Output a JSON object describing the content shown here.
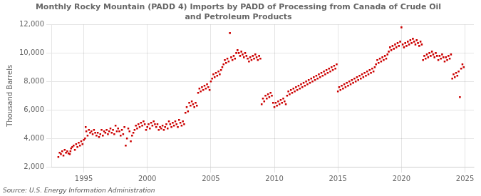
{
  "chart_data": {
    "type": "scatter",
    "title": "Monthly Rocky Mountain (PADD 4) Imports by PADD of Processing from Canada of Crude Oil\nand Petroleum Products",
    "ylabel": "Thousand Barrels",
    "source": "Source: U.S. Energy Information Administration",
    "color": "#cc0000",
    "marker": "square",
    "grid": true,
    "xlim": [
      1992.5,
      2025.7
    ],
    "xticks": [
      1995,
      2000,
      2005,
      2010,
      2015,
      2020,
      2025
    ],
    "ylim": [
      2000,
      12000
    ],
    "yticks": [
      {
        "value": 2000,
        "label": "2,000"
      },
      {
        "value": 4000,
        "label": "4,000"
      },
      {
        "value": 6000,
        "label": "6,000"
      },
      {
        "value": 8000,
        "label": "8,000"
      },
      {
        "value": 10000,
        "label": "10,000"
      },
      {
        "value": 12000,
        "label": "12,000"
      }
    ],
    "x": [
      1993.0,
      1993.1,
      1993.2,
      1993.3,
      1993.4,
      1993.5,
      1993.6,
      1993.7,
      1993.8,
      1993.9,
      1993.95,
      1994.0,
      1994.1,
      1994.2,
      1994.3,
      1994.4,
      1994.5,
      1994.6,
      1994.7,
      1994.8,
      1994.9,
      1995.0,
      1995.1,
      1995.15,
      1995.2,
      1995.3,
      1995.4,
      1995.5,
      1995.6,
      1995.7,
      1995.8,
      1995.9,
      1996.0,
      1996.1,
      1996.2,
      1996.3,
      1996.4,
      1996.5,
      1996.6,
      1996.7,
      1996.8,
      1996.9,
      1997.0,
      1997.1,
      1997.2,
      1997.3,
      1997.4,
      1997.5,
      1997.6,
      1997.7,
      1997.8,
      1997.9,
      1998.0,
      1998.1,
      1998.2,
      1998.3,
      1998.4,
      1998.5,
      1998.6,
      1998.7,
      1998.8,
      1998.9,
      1999.0,
      1999.1,
      1999.2,
      1999.3,
      1999.4,
      1999.5,
      1999.6,
      1999.7,
      1999.8,
      1999.9,
      2000.0,
      2000.1,
      2000.2,
      2000.3,
      2000.4,
      2000.5,
      2000.6,
      2000.7,
      2000.8,
      2000.9,
      2001.0,
      2001.1,
      2001.2,
      2001.3,
      2001.4,
      2001.5,
      2001.6,
      2001.7,
      2001.8,
      2001.9,
      2002.0,
      2002.1,
      2002.2,
      2002.3,
      2002.4,
      2002.5,
      2002.6,
      2002.7,
      2002.8,
      2002.9,
      2003.0,
      2003.1,
      2003.2,
      2003.3,
      2003.4,
      2003.5,
      2003.6,
      2003.7,
      2003.8,
      2003.9,
      2004.0,
      2004.1,
      2004.2,
      2004.3,
      2004.4,
      2004.5,
      2004.6,
      2004.7,
      2004.8,
      2004.9,
      2005.0,
      2005.1,
      2005.2,
      2005.3,
      2005.4,
      2005.5,
      2005.6,
      2005.7,
      2005.8,
      2005.9,
      2006.0,
      2006.1,
      2006.2,
      2006.3,
      2006.4,
      2006.5,
      2006.6,
      2006.7,
      2006.8,
      2006.9,
      2007.0,
      2007.1,
      2007.2,
      2007.3,
      2007.4,
      2007.5,
      2007.6,
      2007.7,
      2007.8,
      2007.9,
      2008.0,
      2008.1,
      2008.2,
      2008.3,
      2008.4,
      2008.5,
      2008.6,
      2008.7,
      2008.8,
      2008.9,
      2009.0,
      2009.1,
      2009.2,
      2009.3,
      2009.4,
      2009.5,
      2009.6,
      2009.7,
      2009.8,
      2009.9,
      2010.0,
      2010.1,
      2010.2,
      2010.3,
      2010.4,
      2010.5,
      2010.6,
      2010.7,
      2010.8,
      2010.9,
      2011.0,
      2011.1,
      2011.2,
      2011.3,
      2011.4,
      2011.5,
      2011.6,
      2011.7,
      2011.8,
      2011.9,
      2012.0,
      2012.1,
      2012.2,
      2012.3,
      2012.4,
      2012.5,
      2012.6,
      2012.7,
      2012.8,
      2012.9,
      2013.0,
      2013.1,
      2013.2,
      2013.3,
      2013.4,
      2013.5,
      2013.6,
      2013.7,
      2013.8,
      2013.9,
      2014.0,
      2014.1,
      2014.2,
      2014.3,
      2014.4,
      2014.5,
      2014.6,
      2014.7,
      2014.8,
      2014.9,
      2015.0,
      2015.1,
      2015.2,
      2015.3,
      2015.4,
      2015.5,
      2015.6,
      2015.7,
      2015.8,
      2015.9,
      2016.0,
      2016.1,
      2016.2,
      2016.3,
      2016.4,
      2016.5,
      2016.6,
      2016.7,
      2016.8,
      2016.9,
      2017.0,
      2017.1,
      2017.2,
      2017.3,
      2017.4,
      2017.5,
      2017.6,
      2017.7,
      2017.8,
      2017.9,
      2018.0,
      2018.1,
      2018.2,
      2018.3,
      2018.4,
      2018.5,
      2018.6,
      2018.7,
      2018.8,
      2018.9,
      2019.0,
      2019.1,
      2019.2,
      2019.3,
      2019.4,
      2019.5,
      2019.6,
      2019.7,
      2019.8,
      2019.9,
      2020.0,
      2020.1,
      2020.2,
      2020.3,
      2020.4,
      2020.5,
      2020.6,
      2020.7,
      2020.8,
      2020.9,
      2021.0,
      2021.1,
      2021.2,
      2021.3,
      2021.4,
      2021.5,
      2021.6,
      2021.7,
      2021.8,
      2021.9,
      2022.0,
      2022.1,
      2022.2,
      2022.3,
      2022.4,
      2022.5,
      2022.6,
      2022.7,
      2022.8,
      2022.9,
      2023.0,
      2023.1,
      2023.2,
      2023.3,
      2023.4,
      2023.5,
      2023.6,
      2023.7,
      2023.8,
      2023.9,
      2024.0,
      2024.1,
      2024.2,
      2024.3,
      2024.4,
      2024.5,
      2024.6,
      2024.7,
      2024.8,
      2024.9
    ],
    "values": [
      2700,
      3000,
      2900,
      3100,
      2800,
      3200,
      3000,
      3100,
      2950,
      2900,
      3100,
      3300,
      3400,
      3500,
      3200,
      3600,
      3400,
      3700,
      3500,
      3800,
      3600,
      3900,
      4000,
      4800,
      4500,
      4200,
      4600,
      4400,
      4500,
      4300,
      4600,
      4400,
      4200,
      4400,
      4100,
      4300,
      4600,
      4200,
      4500,
      4400,
      4600,
      4300,
      4500,
      4700,
      4400,
      4600,
      4300,
      4900,
      4500,
      4700,
      4500,
      4200,
      4600,
      4300,
      4800,
      3500,
      4000,
      4700,
      4500,
      3800,
      4200,
      4400,
      4600,
      4900,
      4700,
      5000,
      4800,
      5100,
      4900,
      5200,
      5000,
      4600,
      4800,
      5000,
      4700,
      5100,
      4900,
      5200,
      5000,
      4800,
      5000,
      4600,
      4800,
      4700,
      4900,
      4600,
      4800,
      5000,
      4700,
      5200,
      5000,
      4800,
      5100,
      4900,
      5200,
      5000,
      4800,
      5300,
      5100,
      4900,
      5200,
      5000,
      5800,
      6200,
      5900,
      6500,
      6300,
      6600,
      6400,
      6200,
      6500,
      6300,
      7200,
      7500,
      7300,
      7600,
      7400,
      7700,
      7500,
      7800,
      7600,
      7400,
      8000,
      8200,
      8500,
      8300,
      8600,
      8400,
      8700,
      8500,
      8800,
      9000,
      9200,
      9500,
      9300,
      9600,
      9400,
      11400,
      9700,
      9500,
      9800,
      9600,
      10000,
      10200,
      10000,
      9800,
      10100,
      9900,
      9700,
      10000,
      9800,
      9600,
      9400,
      9700,
      9500,
      9800,
      9600,
      9900,
      9700,
      9500,
      9800,
      9600,
      6400,
      6800,
      6600,
      7000,
      6800,
      7100,
      6900,
      7200,
      7000,
      6500,
      6200,
      6500,
      6300,
      6600,
      6400,
      6700,
      6500,
      6800,
      6600,
      6400,
      7000,
      7300,
      7100,
      7400,
      7200,
      7500,
      7300,
      7600,
      7400,
      7700,
      7500,
      7800,
      7600,
      7900,
      7700,
      8000,
      7800,
      8100,
      7900,
      8200,
      8000,
      8300,
      8100,
      8400,
      8200,
      8500,
      8300,
      8600,
      8400,
      8700,
      8500,
      8800,
      8600,
      8900,
      8700,
      9000,
      8800,
      9100,
      8900,
      9200,
      7300,
      7600,
      7400,
      7700,
      7500,
      7800,
      7600,
      7900,
      7700,
      8000,
      7800,
      8100,
      7900,
      8200,
      8000,
      8300,
      8100,
      8400,
      8200,
      8500,
      8300,
      8600,
      8400,
      8700,
      8500,
      8800,
      8600,
      8900,
      8700,
      9000,
      9200,
      9500,
      9300,
      9600,
      9400,
      9700,
      9500,
      9800,
      9600,
      9900,
      10100,
      10400,
      10200,
      10500,
      10300,
      10600,
      10400,
      10700,
      10500,
      10800,
      11800,
      10600,
      10400,
      10700,
      10500,
      10800,
      10600,
      10900,
      10700,
      11000,
      10800,
      10600,
      10900,
      10700,
      10500,
      10800,
      10600,
      9500,
      9800,
      9600,
      9900,
      9700,
      10000,
      9800,
      10100,
      9900,
      9700,
      10000,
      9800,
      9500,
      9800,
      9600,
      9900,
      9700,
      9400,
      9700,
      9500,
      9800,
      9600,
      9900,
      8200,
      8500,
      8300,
      8600,
      8400,
      8700,
      6900,
      8900,
      9200,
      9000
    ]
  }
}
